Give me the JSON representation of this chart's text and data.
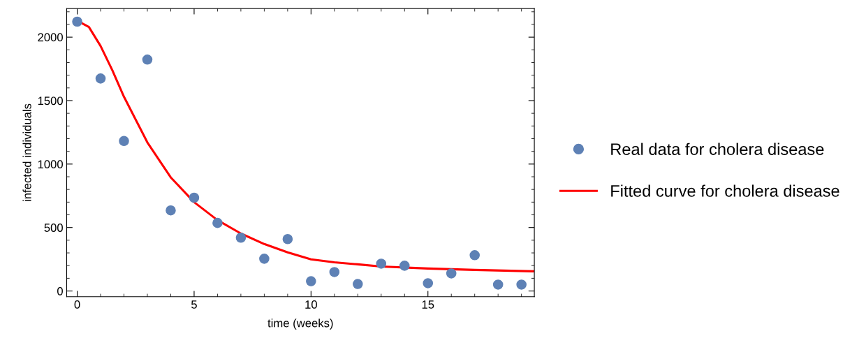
{
  "chart_data": {
    "type": "scatter",
    "xlabel": "time (weeks)",
    "ylabel": "infected individuals",
    "xlim": [
      -0.45,
      19.55
    ],
    "ylim": [
      -45,
      2225
    ],
    "xticks": [
      0,
      5,
      10,
      15
    ],
    "yticks": [
      0,
      500,
      1000,
      1500,
      2000
    ],
    "grid": false,
    "legend": "right",
    "series": [
      {
        "name": "Real data for cholera disease",
        "marker": "circle",
        "color": "#5e81b5",
        "x": [
          0,
          1,
          2,
          3,
          4,
          5,
          6,
          7,
          8,
          9,
          10,
          11,
          12,
          13,
          14,
          15,
          16,
          17,
          18,
          19
        ],
        "values": [
          2122,
          1674,
          1182,
          1823,
          635,
          735,
          536,
          420,
          254,
          409,
          77,
          149,
          55,
          215,
          199,
          61,
          138,
          282,
          50,
          50
        ]
      },
      {
        "name": "Fitted curve for cholera disease",
        "type": "line",
        "color": "#ff0000",
        "line_style": "solid",
        "x": [
          0,
          0.5,
          1,
          1.5,
          2,
          3,
          4,
          5,
          6,
          7,
          8,
          9,
          10,
          11,
          12,
          13,
          15,
          17,
          19.55
        ],
        "values": [
          2130,
          2080,
          1930,
          1740,
          1530,
          1171,
          895,
          700,
          558,
          453,
          370,
          304,
          249,
          226,
          210,
          193,
          177,
          166,
          155
        ]
      }
    ]
  }
}
